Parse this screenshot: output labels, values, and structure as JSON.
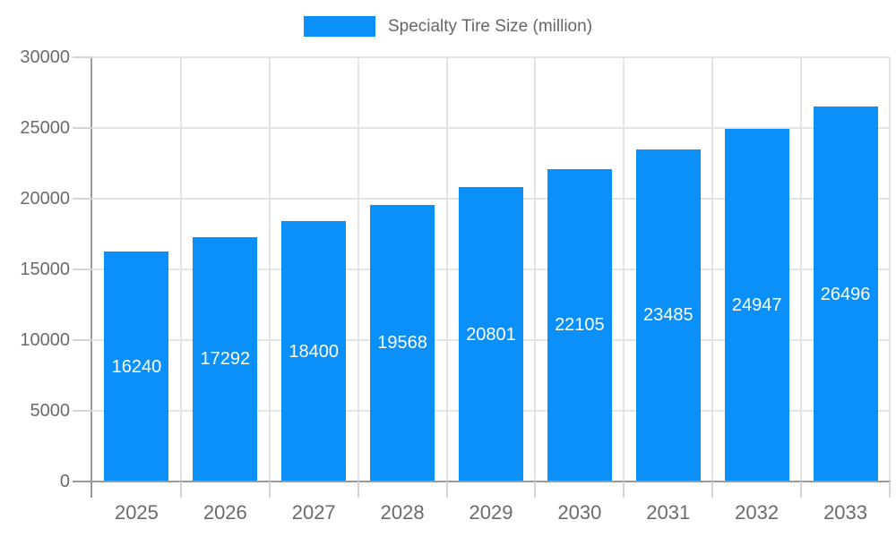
{
  "chart_data": {
    "type": "bar",
    "title": "",
    "legend": {
      "label": "Specialty Tire Size (million)",
      "position": "top-center"
    },
    "categories": [
      "2025",
      "2026",
      "2027",
      "2028",
      "2029",
      "2030",
      "2031",
      "2032",
      "2033"
    ],
    "values": [
      16240,
      17292,
      18400,
      19568,
      20801,
      22105,
      23485,
      24947,
      26496
    ],
    "value_labels": [
      "16240",
      "17292",
      "18400",
      "19568",
      "20801",
      "22105",
      "23485",
      "24947",
      "26496"
    ],
    "xlabel": "",
    "ylabel": "",
    "ylim": [
      0,
      30000
    ],
    "ytick_step": 5000,
    "ytick_labels": [
      "0",
      "5000",
      "10000",
      "15000",
      "20000",
      "25000",
      "30000"
    ],
    "grid": {
      "horizontal": true,
      "vertical": true
    },
    "value_labels_position": "inside-center"
  },
  "colors": {
    "bar": "#0a90f8",
    "bar_value_label": "#ffffff",
    "axis_text": "#6b6b6b",
    "legend_text": "#666666",
    "gridline": "#e4e4e4",
    "axis_line": "#9a9a9a",
    "tick": "#d4d4d4",
    "background": "#ffffff"
  }
}
